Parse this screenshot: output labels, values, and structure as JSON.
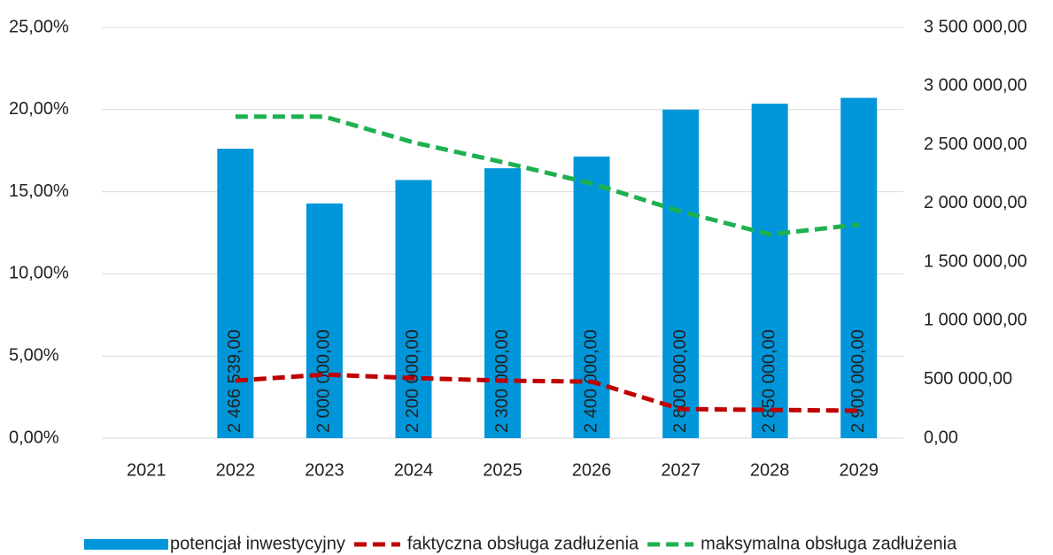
{
  "chart_data": {
    "type": "bar_line",
    "categories": [
      "2021",
      "2022",
      "2023",
      "2024",
      "2025",
      "2026",
      "2027",
      "2028",
      "2029"
    ],
    "series": [
      {
        "name": "potencjał inwestycyjny",
        "type": "bar",
        "axis": "y2",
        "color": "#0096d9",
        "values": [
          null,
          2466539,
          2000000,
          2200000,
          2300000,
          2400000,
          2800000,
          2850000,
          2900000
        ],
        "value_labels": [
          null,
          "2 466 539,00",
          "2 000 000,00",
          "2 200 000,00",
          "2 300 000,00",
          "2 400 000,00",
          "2 800 000,00",
          "2 850 000,00",
          "2 900 000,00"
        ]
      },
      {
        "name": "faktyczna obsługa zadłużenia",
        "type": "line",
        "color": "#c00000",
        "values": [
          null,
          3.5,
          3.87,
          3.66,
          3.5,
          3.44,
          1.77,
          1.72,
          1.67
        ]
      },
      {
        "name": "maksymalna obsługa zadłużenia",
        "type": "line",
        "color": "#1fb050",
        "values": [
          null,
          19.57,
          19.57,
          18.0,
          16.8,
          15.5,
          13.8,
          12.4,
          13.0
        ]
      }
    ],
    "ylim": [
      0,
      25
    ],
    "yticks": [
      {
        "value": 0,
        "label": "0,00%"
      },
      {
        "value": 5,
        "label": "5,00%"
      },
      {
        "value": 10,
        "label": "10,00%"
      },
      {
        "value": 15,
        "label": "15,00%"
      },
      {
        "value": 20,
        "label": "20,00%"
      },
      {
        "value": 25,
        "label": "25,00%"
      }
    ],
    "y2lim": [
      0,
      3500000
    ],
    "y2ticks": [
      {
        "value": 0,
        "label": "0,00"
      },
      {
        "value": 500000,
        "label": "500 000,00"
      },
      {
        "value": 1000000,
        "label": "1 000 000,00"
      },
      {
        "value": 1500000,
        "label": "1 500 000,00"
      },
      {
        "value": 2000000,
        "label": "2 000 000,00"
      },
      {
        "value": 2500000,
        "label": "2 500 000,00"
      },
      {
        "value": 3000000,
        "label": "3 000 000,00"
      },
      {
        "value": 3500000,
        "label": "3 500 000,00"
      }
    ],
    "grid": true,
    "legend": "bottom"
  }
}
